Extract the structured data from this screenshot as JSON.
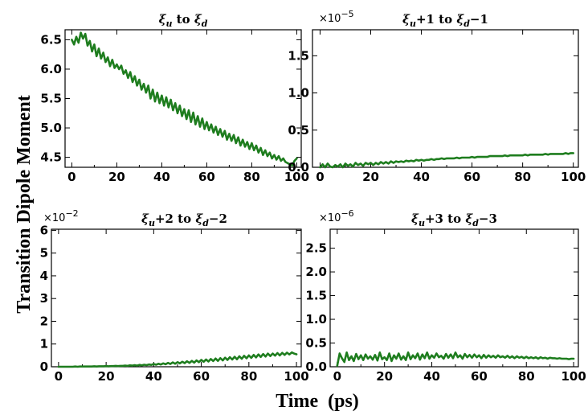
{
  "figure": {
    "ylabel": "Transition Dipole Moment",
    "xlabel": "Time  (ps)",
    "line_color": "#1e7d1e"
  },
  "chart_data": [
    {
      "type": "line",
      "title": "ξu to ξd",
      "multiplier": "",
      "x_ticks": [
        "0",
        "20",
        "40",
        "60",
        "80",
        "100"
      ],
      "y_ticks": [
        "4.5",
        "5.0",
        "5.5",
        "6.0",
        "6.5"
      ],
      "xlim": [
        -3,
        102
      ],
      "ylim": [
        4.33,
        6.67
      ],
      "x": [
        0,
        1,
        2,
        3,
        4,
        5,
        6,
        7,
        8,
        9,
        10,
        11,
        12,
        13,
        14,
        15,
        16,
        17,
        18,
        19,
        20,
        21,
        22,
        23,
        24,
        25,
        26,
        27,
        28,
        29,
        30,
        31,
        32,
        33,
        34,
        35,
        36,
        37,
        38,
        39,
        40,
        41,
        42,
        43,
        44,
        45,
        46,
        47,
        48,
        49,
        50,
        51,
        52,
        53,
        54,
        55,
        56,
        57,
        58,
        59,
        60,
        61,
        62,
        63,
        64,
        65,
        66,
        67,
        68,
        69,
        70,
        71,
        72,
        73,
        74,
        75,
        76,
        77,
        78,
        79,
        80,
        81,
        82,
        83,
        84,
        85,
        86,
        87,
        88,
        89,
        90,
        91,
        92,
        93,
        94,
        95,
        96,
        97,
        98,
        99,
        100
      ],
      "y": [
        6.5,
        6.42,
        6.55,
        6.45,
        6.62,
        6.52,
        6.6,
        6.4,
        6.48,
        6.3,
        6.42,
        6.22,
        6.35,
        6.18,
        6.28,
        6.12,
        6.2,
        6.05,
        6.16,
        6.02,
        6.08,
        6.0,
        6.06,
        5.92,
        5.98,
        5.85,
        5.95,
        5.78,
        5.88,
        5.72,
        5.82,
        5.65,
        5.75,
        5.6,
        5.72,
        5.5,
        5.65,
        5.45,
        5.6,
        5.42,
        5.55,
        5.38,
        5.52,
        5.35,
        5.48,
        5.3,
        5.42,
        5.25,
        5.38,
        5.2,
        5.32,
        5.15,
        5.3,
        5.1,
        5.26,
        5.06,
        5.2,
        5.02,
        5.16,
        4.98,
        5.1,
        4.96,
        5.06,
        4.92,
        5.02,
        4.88,
        4.98,
        4.85,
        4.95,
        4.8,
        4.9,
        4.78,
        4.88,
        4.74,
        4.84,
        4.7,
        4.8,
        4.68,
        4.76,
        4.64,
        4.74,
        4.62,
        4.7,
        4.58,
        4.66,
        4.54,
        4.62,
        4.52,
        4.58,
        4.48,
        4.54,
        4.46,
        4.52,
        4.44,
        4.48,
        4.42,
        4.4,
        4.38,
        4.36,
        4.44,
        4.48
      ]
    },
    {
      "type": "line",
      "title": "ξu+1 to ξd−1",
      "multiplier": "×10−5",
      "x_ticks": [
        "0",
        "20",
        "40",
        "60",
        "80",
        "100"
      ],
      "y_ticks": [
        "0.0",
        "0.5",
        "1.0",
        "1.5"
      ],
      "xlim": [
        -3,
        102
      ],
      "ylim": [
        0,
        1.85
      ],
      "x": [
        0,
        1,
        2,
        3,
        4,
        5,
        6,
        7,
        8,
        9,
        10,
        11,
        12,
        13,
        14,
        15,
        16,
        17,
        18,
        19,
        20,
        21,
        22,
        23,
        24,
        25,
        26,
        27,
        28,
        29,
        30,
        31,
        32,
        33,
        34,
        35,
        36,
        37,
        38,
        39,
        40,
        41,
        42,
        43,
        44,
        45,
        46,
        47,
        48,
        49,
        50,
        51,
        52,
        53,
        54,
        55,
        56,
        57,
        58,
        59,
        60,
        61,
        62,
        63,
        64,
        65,
        66,
        67,
        68,
        69,
        70,
        71,
        72,
        73,
        74,
        75,
        76,
        77,
        78,
        79,
        80,
        81,
        82,
        83,
        84,
        85,
        86,
        87,
        88,
        89,
        90,
        91,
        92,
        93,
        94,
        95,
        96,
        97,
        98,
        99,
        100
      ],
      "y": [
        0.0,
        0.04,
        0.0,
        0.05,
        0.01,
        0.0,
        0.03,
        0.01,
        0.04,
        0.0,
        0.05,
        0.02,
        0.04,
        0.01,
        0.06,
        0.03,
        0.05,
        0.02,
        0.06,
        0.04,
        0.06,
        0.03,
        0.06,
        0.04,
        0.07,
        0.05,
        0.07,
        0.05,
        0.08,
        0.06,
        0.08,
        0.07,
        0.08,
        0.07,
        0.09,
        0.08,
        0.09,
        0.08,
        0.1,
        0.09,
        0.1,
        0.09,
        0.1,
        0.1,
        0.11,
        0.1,
        0.11,
        0.11,
        0.12,
        0.11,
        0.12,
        0.12,
        0.12,
        0.12,
        0.13,
        0.12,
        0.13,
        0.13,
        0.13,
        0.13,
        0.14,
        0.13,
        0.14,
        0.14,
        0.14,
        0.14,
        0.14,
        0.15,
        0.15,
        0.15,
        0.15,
        0.15,
        0.15,
        0.16,
        0.15,
        0.16,
        0.16,
        0.16,
        0.16,
        0.16,
        0.16,
        0.17,
        0.16,
        0.17,
        0.17,
        0.17,
        0.17,
        0.17,
        0.17,
        0.18,
        0.17,
        0.18,
        0.18,
        0.18,
        0.18,
        0.18,
        0.18,
        0.19,
        0.18,
        0.19,
        0.19
      ]
    },
    {
      "type": "line",
      "title": "ξu+2 to ξd−2",
      "multiplier": "×10−2",
      "x_ticks": [
        "0",
        "20",
        "40",
        "60",
        "80",
        "100"
      ],
      "y_ticks": [
        "0",
        "1",
        "2",
        "3",
        "4",
        "5",
        "6"
      ],
      "xlim": [
        -3,
        102
      ],
      "ylim": [
        0,
        6.05
      ],
      "x": [
        0,
        1,
        2,
        3,
        4,
        5,
        6,
        7,
        8,
        9,
        10,
        11,
        12,
        13,
        14,
        15,
        16,
        17,
        18,
        19,
        20,
        21,
        22,
        23,
        24,
        25,
        26,
        27,
        28,
        29,
        30,
        31,
        32,
        33,
        34,
        35,
        36,
        37,
        38,
        39,
        40,
        41,
        42,
        43,
        44,
        45,
        46,
        47,
        48,
        49,
        50,
        51,
        52,
        53,
        54,
        55,
        56,
        57,
        58,
        59,
        60,
        61,
        62,
        63,
        64,
        65,
        66,
        67,
        68,
        69,
        70,
        71,
        72,
        73,
        74,
        75,
        76,
        77,
        78,
        79,
        80,
        81,
        82,
        83,
        84,
        85,
        86,
        87,
        88,
        89,
        90,
        91,
        92,
        93,
        94,
        95,
        96,
        97,
        98,
        99,
        100
      ],
      "y": [
        0.0,
        0.0,
        0.0,
        0.0,
        0.0,
        0.0,
        0.0,
        0.01,
        0.0,
        0.01,
        0.01,
        0.01,
        0.01,
        0.01,
        0.01,
        0.02,
        0.01,
        0.02,
        0.02,
        0.02,
        0.03,
        0.02,
        0.03,
        0.03,
        0.04,
        0.03,
        0.04,
        0.04,
        0.05,
        0.04,
        0.06,
        0.05,
        0.07,
        0.05,
        0.08,
        0.06,
        0.09,
        0.07,
        0.1,
        0.08,
        0.12,
        0.09,
        0.13,
        0.1,
        0.15,
        0.11,
        0.17,
        0.12,
        0.19,
        0.13,
        0.2,
        0.15,
        0.22,
        0.16,
        0.24,
        0.17,
        0.26,
        0.18,
        0.28,
        0.2,
        0.3,
        0.22,
        0.32,
        0.23,
        0.34,
        0.25,
        0.36,
        0.26,
        0.38,
        0.28,
        0.4,
        0.3,
        0.42,
        0.32,
        0.44,
        0.33,
        0.46,
        0.35,
        0.48,
        0.37,
        0.5,
        0.39,
        0.52,
        0.41,
        0.54,
        0.43,
        0.56,
        0.45,
        0.58,
        0.47,
        0.58,
        0.49,
        0.6,
        0.5,
        0.61,
        0.52,
        0.62,
        0.54,
        0.63,
        0.58,
        0.55
      ]
    },
    {
      "type": "line",
      "title": "ξu+3 to ξd−3",
      "multiplier": "×10−6",
      "x_ticks": [
        "0",
        "20",
        "40",
        "60",
        "80",
        "100"
      ],
      "y_ticks": [
        "0.0",
        "0.5",
        "1.0",
        "1.5",
        "2.0",
        "2.5"
      ],
      "xlim": [
        -3,
        102
      ],
      "ylim": [
        0,
        2.9
      ],
      "x": [
        0,
        1,
        2,
        3,
        4,
        5,
        6,
        7,
        8,
        9,
        10,
        11,
        12,
        13,
        14,
        15,
        16,
        17,
        18,
        19,
        20,
        21,
        22,
        23,
        24,
        25,
        26,
        27,
        28,
        29,
        30,
        31,
        32,
        33,
        34,
        35,
        36,
        37,
        38,
        39,
        40,
        41,
        42,
        43,
        44,
        45,
        46,
        47,
        48,
        49,
        50,
        51,
        52,
        53,
        54,
        55,
        56,
        57,
        58,
        59,
        60,
        61,
        62,
        63,
        64,
        65,
        66,
        67,
        68,
        69,
        70,
        71,
        72,
        73,
        74,
        75,
        76,
        77,
        78,
        79,
        80,
        81,
        82,
        83,
        84,
        85,
        86,
        87,
        88,
        89,
        90,
        91,
        92,
        93,
        94,
        95,
        96,
        97,
        98,
        99,
        100
      ],
      "y": [
        0.02,
        0.28,
        0.18,
        0.1,
        0.3,
        0.14,
        0.22,
        0.12,
        0.27,
        0.16,
        0.24,
        0.14,
        0.26,
        0.17,
        0.22,
        0.15,
        0.25,
        0.13,
        0.3,
        0.16,
        0.2,
        0.14,
        0.28,
        0.12,
        0.24,
        0.17,
        0.28,
        0.15,
        0.22,
        0.14,
        0.3,
        0.16,
        0.24,
        0.18,
        0.28,
        0.15,
        0.26,
        0.18,
        0.3,
        0.17,
        0.24,
        0.19,
        0.28,
        0.2,
        0.23,
        0.17,
        0.27,
        0.19,
        0.26,
        0.18,
        0.3,
        0.2,
        0.24,
        0.17,
        0.27,
        0.2,
        0.25,
        0.19,
        0.26,
        0.2,
        0.24,
        0.18,
        0.25,
        0.19,
        0.24,
        0.2,
        0.23,
        0.19,
        0.24,
        0.2,
        0.22,
        0.19,
        0.23,
        0.19,
        0.22,
        0.18,
        0.22,
        0.19,
        0.21,
        0.18,
        0.21,
        0.18,
        0.2,
        0.18,
        0.2,
        0.17,
        0.2,
        0.18,
        0.19,
        0.17,
        0.19,
        0.18,
        0.18,
        0.17,
        0.18,
        0.17,
        0.17,
        0.17,
        0.16,
        0.17,
        0.17
      ]
    }
  ]
}
